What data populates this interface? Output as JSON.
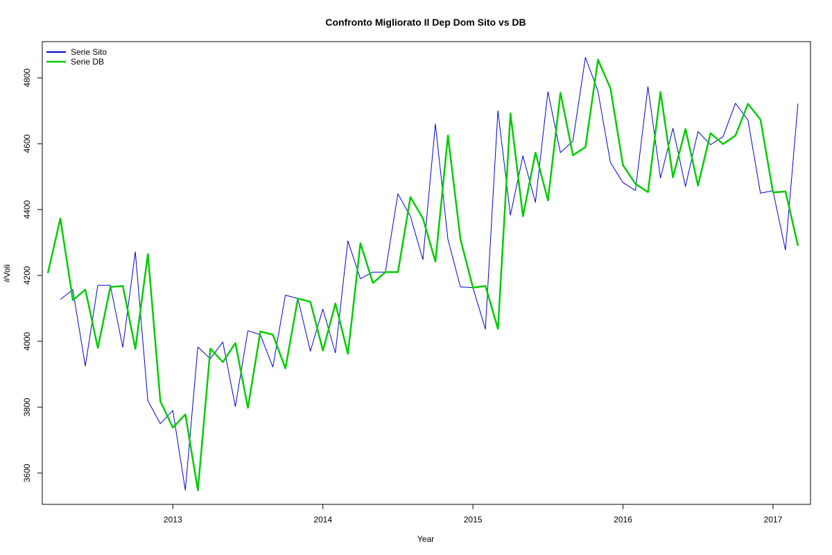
{
  "chart_data": {
    "type": "line",
    "title": "Confronto Migliorato Il Dep Dom Sito vs DB",
    "xlabel": "Year",
    "ylabel": "#Voli",
    "xlim": [
      2012.13,
      2017.25
    ],
    "ylim": [
      3505,
      4910
    ],
    "x_ticks": [
      2013,
      2014,
      2015,
      2016,
      2017
    ],
    "x_tick_labels": [
      "2013",
      "2014",
      "2015",
      "2016",
      "2017"
    ],
    "y_ticks": [
      3600,
      3800,
      4000,
      4200,
      4400,
      4600,
      4800
    ],
    "y_tick_labels": [
      "3600",
      "3800",
      "4000",
      "4200",
      "4400",
      "4600",
      "4800"
    ],
    "grid": false,
    "legend_position": "top-left",
    "series": [
      {
        "name": "Serie Sito",
        "color": "#0000cc",
        "line_width": 1,
        "start_year": 2012.25,
        "step": 0.08333,
        "values": [
          4127,
          4157,
          3925,
          4170,
          4170,
          3982,
          4272,
          3820,
          3750,
          3790,
          3548,
          3983,
          3947,
          3998,
          3802,
          4032,
          4020,
          3922,
          4140,
          4130,
          3970,
          4098,
          3965,
          4305,
          4190,
          4210,
          4210,
          4448,
          4380,
          4248,
          4660,
          4310,
          4165,
          4163,
          4037,
          4700,
          4383,
          4563,
          4422,
          4758,
          4573,
          4608,
          4862,
          4760,
          4543,
          4482,
          4458,
          4773,
          4496,
          4647,
          4470,
          4637,
          4597,
          4621,
          4723,
          4672,
          4450,
          4457,
          4277,
          4722
        ]
      },
      {
        "name": "Serie DB",
        "color": "#00cc00",
        "line_width": 2.5,
        "start_year": 2012.167,
        "step": 0.08333,
        "values": [
          4207,
          4373,
          4125,
          4157,
          3980,
          4165,
          4168,
          3977,
          4265,
          3818,
          3738,
          3778,
          3548,
          3978,
          3937,
          3995,
          3798,
          4030,
          4020,
          3918,
          4130,
          4120,
          3972,
          4115,
          3962,
          4298,
          4177,
          4210,
          4210,
          4438,
          4373,
          4242,
          4625,
          4310,
          4163,
          4168,
          4038,
          4692,
          4380,
          4573,
          4428,
          4755,
          4565,
          4590,
          4855,
          4768,
          4535,
          4478,
          4453,
          4757,
          4498,
          4645,
          4473,
          4632,
          4599,
          4625,
          4721,
          4673,
          4452,
          4455,
          4290
        ]
      }
    ]
  }
}
